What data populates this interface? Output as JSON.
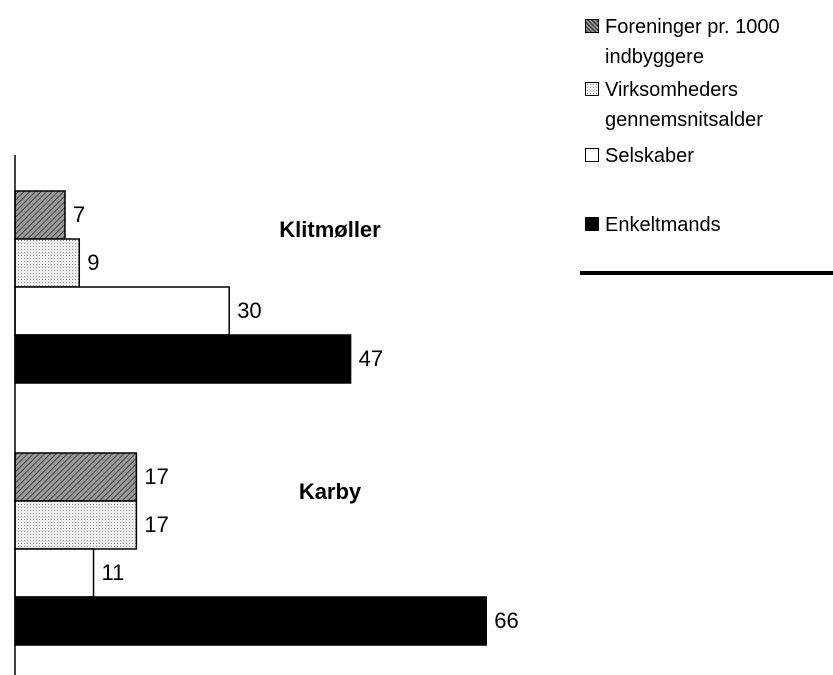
{
  "chart_data": {
    "type": "bar",
    "orientation": "horizontal",
    "categories": [
      "Klitmøller",
      "Karby"
    ],
    "series": [
      {
        "name": "Foreninger pr. 1000 indbyggere",
        "color": "#808080",
        "pattern": "diagonal",
        "values": [
          7,
          17
        ]
      },
      {
        "name": "Virksomheders gennemsnitsalder",
        "color": "#dddddd",
        "pattern": "dots",
        "values": [
          9,
          17
        ]
      },
      {
        "name": "Selskaber",
        "color": "#ffffff",
        "values": [
          30,
          11
        ]
      },
      {
        "name": "Enkeltmands",
        "color": "#000000",
        "values": [
          47,
          66
        ]
      }
    ],
    "xlim": [
      0,
      100
    ],
    "grid": false,
    "legend": "top-right",
    "data_labels": true
  }
}
